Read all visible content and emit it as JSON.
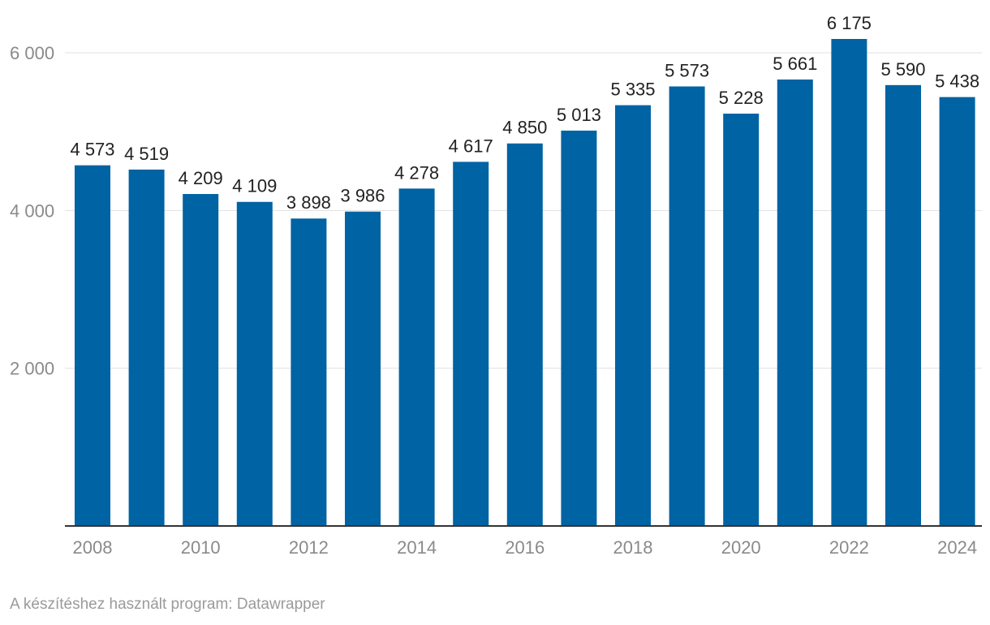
{
  "colors": {
    "bar": "#0063a3",
    "grid": "#e0e0e0",
    "axis": "#333333",
    "tick_text": "#8a8a8a",
    "label_text": "#222222"
  },
  "chart_data": {
    "type": "bar",
    "title": "",
    "xlabel": "",
    "ylabel": "",
    "categories": [
      "2008",
      "2009",
      "2010",
      "2011",
      "2012",
      "2013",
      "2014",
      "2015",
      "2016",
      "2017",
      "2018",
      "2019",
      "2020",
      "2021",
      "2022",
      "2023",
      "2024"
    ],
    "values": [
      4573,
      4519,
      4209,
      4109,
      3898,
      3986,
      4278,
      4617,
      4850,
      5013,
      5335,
      5573,
      5228,
      5661,
      6175,
      5590,
      5438
    ],
    "value_labels": [
      "4 573",
      "4 519",
      "4 209",
      "4 109",
      "3 898",
      "3 986",
      "4 278",
      "4 617",
      "4 850",
      "5 013",
      "5 335",
      "5 573",
      "5 228",
      "5 661",
      "6 175",
      "5 590",
      "5 438"
    ],
    "x_tick_labels": [
      "2008",
      "",
      "2010",
      "",
      "2012",
      "",
      "2014",
      "",
      "2016",
      "",
      "2018",
      "",
      "2020",
      "",
      "2022",
      "",
      "2024"
    ],
    "y_ticks": [
      2000,
      4000,
      6000
    ],
    "y_tick_labels": [
      "2 000",
      "4 000",
      "6 000"
    ],
    "ylim": [
      0,
      6200
    ],
    "grid": true
  },
  "footer": {
    "credit": "A készítéshez használt program: Datawrapper"
  }
}
